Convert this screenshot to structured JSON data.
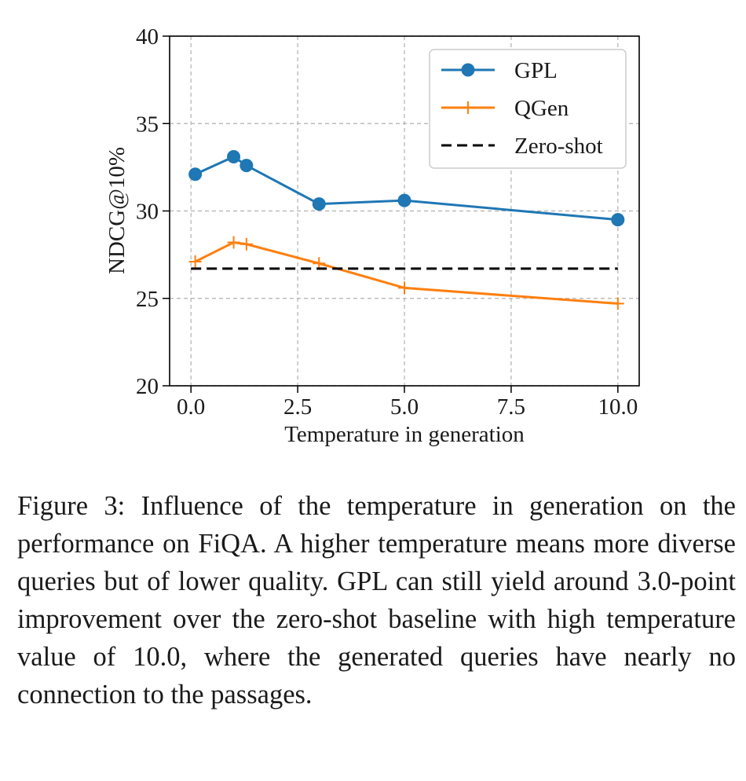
{
  "chart_data": {
    "type": "line",
    "xlabel": "Temperature in generation",
    "ylabel": "NDCG@10%",
    "xlim": [
      -0.5,
      10.5
    ],
    "ylim": [
      20,
      40
    ],
    "xticks": [
      0.0,
      2.5,
      5.0,
      7.5,
      10.0
    ],
    "xtick_labels": [
      "0.0",
      "2.5",
      "5.0",
      "7.5",
      "10.0"
    ],
    "yticks": [
      20,
      25,
      30,
      35,
      40
    ],
    "ytick_labels": [
      "20",
      "25",
      "30",
      "35",
      "40"
    ],
    "grid": true,
    "legend_position": "top-right",
    "series": [
      {
        "name": "GPL",
        "color": "#1f77b4",
        "marker": "circle",
        "linestyle": "solid",
        "x": [
          0.1,
          1.0,
          1.3,
          3.0,
          5.0,
          10.0
        ],
        "y": [
          32.1,
          33.1,
          32.6,
          30.4,
          30.6,
          29.5
        ]
      },
      {
        "name": "QGen",
        "color": "#ff7f0e",
        "marker": "plus",
        "linestyle": "solid",
        "x": [
          0.1,
          1.0,
          1.3,
          3.0,
          5.0,
          10.0
        ],
        "y": [
          27.1,
          28.2,
          28.1,
          27.0,
          25.6,
          24.7
        ]
      },
      {
        "name": "Zero-shot",
        "color": "#000000",
        "marker": "none",
        "linestyle": "dashed",
        "x": [
          0.0,
          10.0
        ],
        "y": [
          26.7,
          26.7
        ]
      }
    ]
  },
  "caption": "Figure 3: Influence of the temperature in generation on the performance on FiQA. A higher temperature means more diverse queries but of lower quality. GPL can still yield around 3.0-point improvement over the zero-shot baseline with high temperature value of 10.0, where the generated queries have nearly no connection to the passages."
}
